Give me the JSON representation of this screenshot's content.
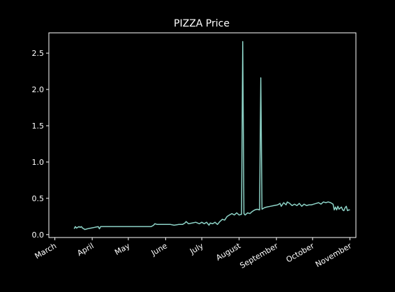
{
  "chart_data": {
    "type": "line",
    "title": "PIZZA Price",
    "xlabel": "",
    "ylabel": "",
    "x_axis": "date",
    "xlim": [
      "2023-02-24",
      "2023-11-06"
    ],
    "ylim": [
      -0.04,
      2.78
    ],
    "grid": false,
    "background": "#000000",
    "line_color": "#8dd3c7",
    "x_ticks": [
      {
        "date": "2023-03-01",
        "label": "March"
      },
      {
        "date": "2023-04-01",
        "label": "April"
      },
      {
        "date": "2023-05-01",
        "label": "May"
      },
      {
        "date": "2023-06-01",
        "label": "June"
      },
      {
        "date": "2023-07-01",
        "label": "July"
      },
      {
        "date": "2023-08-01",
        "label": "August"
      },
      {
        "date": "2023-09-01",
        "label": "September"
      },
      {
        "date": "2023-10-01",
        "label": "October"
      },
      {
        "date": "2023-11-01",
        "label": "November"
      }
    ],
    "y_ticks": [
      {
        "value": 0.0,
        "label": "0.0"
      },
      {
        "value": 0.5,
        "label": "0.5"
      },
      {
        "value": 1.0,
        "label": "1.0"
      },
      {
        "value": 1.5,
        "label": "1.5"
      },
      {
        "value": 2.0,
        "label": "2.0"
      },
      {
        "value": 2.5,
        "label": "2.5"
      }
    ],
    "series": [
      {
        "points": [
          [
            "2023-03-17",
            0.08
          ],
          [
            "2023-03-18",
            0.11
          ],
          [
            "2023-03-19",
            0.09
          ],
          [
            "2023-03-20",
            0.1
          ],
          [
            "2023-03-21",
            0.11
          ],
          [
            "2023-03-22",
            0.1
          ],
          [
            "2023-03-23",
            0.11
          ],
          [
            "2023-03-24",
            0.09
          ],
          [
            "2023-03-26",
            0.07
          ],
          [
            "2023-03-28",
            0.08
          ],
          [
            "2023-03-31",
            0.09
          ],
          [
            "2023-04-03",
            0.1
          ],
          [
            "2023-04-06",
            0.11
          ],
          [
            "2023-04-07",
            0.08
          ],
          [
            "2023-04-08",
            0.11
          ],
          [
            "2023-04-10",
            0.11
          ],
          [
            "2023-04-15",
            0.11
          ],
          [
            "2023-04-20",
            0.11
          ],
          [
            "2023-04-25",
            0.11
          ],
          [
            "2023-05-01",
            0.11
          ],
          [
            "2023-05-06",
            0.11
          ],
          [
            "2023-05-11",
            0.11
          ],
          [
            "2023-05-16",
            0.11
          ],
          [
            "2023-05-20",
            0.11
          ],
          [
            "2023-05-22",
            0.13
          ],
          [
            "2023-05-23",
            0.15
          ],
          [
            "2023-05-25",
            0.14
          ],
          [
            "2023-05-28",
            0.14
          ],
          [
            "2023-06-01",
            0.14
          ],
          [
            "2023-06-05",
            0.14
          ],
          [
            "2023-06-08",
            0.13
          ],
          [
            "2023-06-12",
            0.14
          ],
          [
            "2023-06-15",
            0.14
          ],
          [
            "2023-06-17",
            0.16
          ],
          [
            "2023-06-18",
            0.18
          ],
          [
            "2023-06-20",
            0.15
          ],
          [
            "2023-06-23",
            0.16
          ],
          [
            "2023-06-26",
            0.17
          ],
          [
            "2023-06-29",
            0.15
          ],
          [
            "2023-07-01",
            0.17
          ],
          [
            "2023-07-03",
            0.15
          ],
          [
            "2023-07-05",
            0.17
          ],
          [
            "2023-07-07",
            0.13
          ],
          [
            "2023-07-08",
            0.16
          ],
          [
            "2023-07-10",
            0.15
          ],
          [
            "2023-07-12",
            0.17
          ],
          [
            "2023-07-14",
            0.14
          ],
          [
            "2023-07-16",
            0.18
          ],
          [
            "2023-07-18",
            0.21
          ],
          [
            "2023-07-20",
            0.2
          ],
          [
            "2023-07-22",
            0.25
          ],
          [
            "2023-07-24",
            0.27
          ],
          [
            "2023-07-26",
            0.29
          ],
          [
            "2023-07-28",
            0.27
          ],
          [
            "2023-07-30",
            0.3
          ],
          [
            "2023-08-01",
            0.27
          ],
          [
            "2023-08-03",
            0.28
          ],
          [
            "2023-08-04",
            2.66
          ],
          [
            "2023-08-05",
            0.29
          ],
          [
            "2023-08-06",
            0.27
          ],
          [
            "2023-08-08",
            0.3
          ],
          [
            "2023-08-10",
            0.29
          ],
          [
            "2023-08-12",
            0.32
          ],
          [
            "2023-08-14",
            0.34
          ],
          [
            "2023-08-16",
            0.35
          ],
          [
            "2023-08-18",
            0.34
          ],
          [
            "2023-08-19",
            2.16
          ],
          [
            "2023-08-20",
            0.35
          ],
          [
            "2023-08-22",
            0.37
          ],
          [
            "2023-08-24",
            0.38
          ],
          [
            "2023-08-27",
            0.39
          ],
          [
            "2023-08-30",
            0.4
          ],
          [
            "2023-09-02",
            0.41
          ],
          [
            "2023-09-04",
            0.43
          ],
          [
            "2023-09-05",
            0.39
          ],
          [
            "2023-09-07",
            0.44
          ],
          [
            "2023-09-09",
            0.41
          ],
          [
            "2023-09-10",
            0.45
          ],
          [
            "2023-09-12",
            0.43
          ],
          [
            "2023-09-14",
            0.4
          ],
          [
            "2023-09-16",
            0.42
          ],
          [
            "2023-09-18",
            0.4
          ],
          [
            "2023-09-20",
            0.43
          ],
          [
            "2023-09-22",
            0.39
          ],
          [
            "2023-09-24",
            0.42
          ],
          [
            "2023-09-26",
            0.4
          ],
          [
            "2023-09-28",
            0.41
          ],
          [
            "2023-09-30",
            0.41
          ],
          [
            "2023-10-02",
            0.42
          ],
          [
            "2023-10-04",
            0.43
          ],
          [
            "2023-10-06",
            0.44
          ],
          [
            "2023-10-08",
            0.42
          ],
          [
            "2023-10-10",
            0.45
          ],
          [
            "2023-10-12",
            0.44
          ],
          [
            "2023-10-14",
            0.45
          ],
          [
            "2023-10-16",
            0.44
          ],
          [
            "2023-10-18",
            0.42
          ],
          [
            "2023-10-19",
            0.34
          ],
          [
            "2023-10-20",
            0.38
          ],
          [
            "2023-10-21",
            0.34
          ],
          [
            "2023-10-22",
            0.39
          ],
          [
            "2023-10-23",
            0.35
          ],
          [
            "2023-10-25",
            0.38
          ],
          [
            "2023-10-26",
            0.34
          ],
          [
            "2023-10-27",
            0.33
          ],
          [
            "2023-10-28",
            0.37
          ],
          [
            "2023-10-29",
            0.39
          ],
          [
            "2023-10-30",
            0.33
          ],
          [
            "2023-10-31",
            0.34
          ],
          [
            "2023-11-01",
            0.34
          ]
        ]
      }
    ]
  }
}
